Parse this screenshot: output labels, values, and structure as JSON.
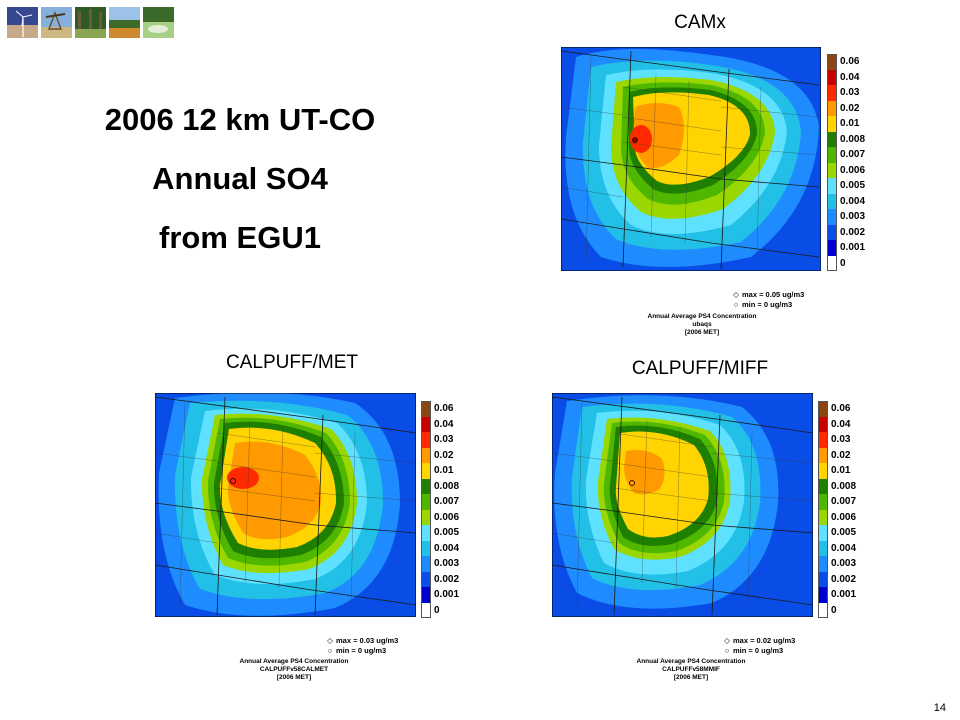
{
  "header": {
    "thumbnails": [
      {
        "icon": "wind-turbine-photo-icon",
        "colors": [
          "#2b3f8a",
          "#8f9ccf",
          "#e6c6a3"
        ]
      },
      {
        "icon": "oil-pump-photo-icon",
        "colors": [
          "#7aa6d6",
          "#c9b07a",
          "#e0d6b5"
        ]
      },
      {
        "icon": "forest-photo-icon",
        "colors": [
          "#2f5a24",
          "#6e8f3a",
          "#a8b86a"
        ]
      },
      {
        "icon": "field-photo-icon",
        "colors": [
          "#8fb6e0",
          "#c9862f",
          "#557a2a"
        ]
      },
      {
        "icon": "wetland-photo-icon",
        "colors": [
          "#3b6b2a",
          "#9cc27b",
          "#d8e8c8"
        ]
      }
    ]
  },
  "title": {
    "line1": "2006 12 km UT-CO",
    "line2": "Annual SO4",
    "line3": "from EGU1"
  },
  "legend": {
    "levels": [
      "0.06",
      "0.04",
      "0.03",
      "0.02",
      "0.01",
      "0.008",
      "0.007",
      "0.006",
      "0.005",
      "0.004",
      "0.003",
      "0.002",
      "0.001",
      "0"
    ],
    "colors": [
      "#8b4513",
      "#c80000",
      "#ff2a00",
      "#ff9a00",
      "#ffd400",
      "#1e7f00",
      "#4fb700",
      "#9ad700",
      "#5ee0ff",
      "#22bfe6",
      "#1e8cff",
      "#0a4de6",
      "#0000cc",
      "#ffffff"
    ]
  },
  "panels": [
    {
      "key": "camx",
      "label": "CAMx",
      "stats_max": "max = 0.05 ug/m3",
      "stats_min": "min = 0 ug/m3",
      "caption_line1": "Annual Average PS4 Concentration",
      "caption_line2": "ubaqs",
      "caption_line3": "[2006 MET]"
    },
    {
      "key": "calpuff-met",
      "label": "CALPUFF/MET",
      "stats_max": "max = 0.03 ug/m3",
      "stats_min": "min = 0 ug/m3",
      "caption_line1": "Annual Average PS4 Concentration",
      "caption_line2": "CALPUFFv58CALMET",
      "caption_line3": "[2006 MET]"
    },
    {
      "key": "calpuff-miff",
      "label": "CALPUFF/MIFF",
      "stats_max": "max = 0.02 ug/m3",
      "stats_min": "min = 0 ug/m3",
      "caption_line1": "Annual Average PS4 Concentration",
      "caption_line2": "CALPUFFv58MMIF",
      "caption_line3": "[2006 MET]"
    }
  ],
  "page_number": "14"
}
